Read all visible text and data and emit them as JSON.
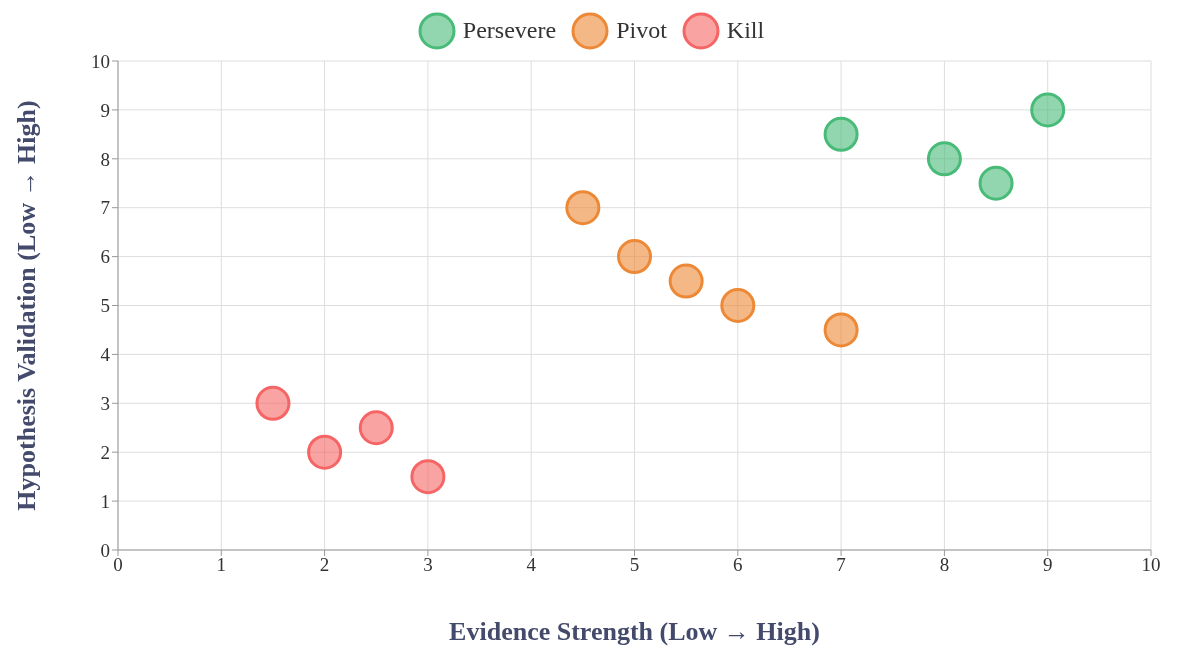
{
  "chart_data": {
    "type": "scatter",
    "xlabel": "Evidence Strength (Low → High)",
    "ylabel": "Hypothesis Validation (Low → High)",
    "xlim": [
      0,
      10
    ],
    "ylim": [
      0,
      10
    ],
    "xticks": [
      0,
      1,
      2,
      3,
      4,
      5,
      6,
      7,
      8,
      9,
      10
    ],
    "yticks": [
      0,
      1,
      2,
      3,
      4,
      5,
      6,
      7,
      8,
      9,
      10
    ],
    "grid": true,
    "legend": "top",
    "marker": "circle",
    "series": [
      {
        "name": "Persevere",
        "color": "#48bb78",
        "x": [
          7,
          8,
          8.5,
          9
        ],
        "values": [
          8.5,
          8,
          7.5,
          9
        ]
      },
      {
        "name": "Pivot",
        "color": "#ed8936",
        "x": [
          4.5,
          5,
          5.5,
          6,
          7
        ],
        "values": [
          7,
          6,
          5.5,
          5,
          4.5
        ]
      },
      {
        "name": "Kill",
        "color": "#f56565",
        "x": [
          1.5,
          2,
          2.5,
          3
        ],
        "values": [
          3,
          2,
          2.5,
          1.5
        ]
      }
    ]
  }
}
